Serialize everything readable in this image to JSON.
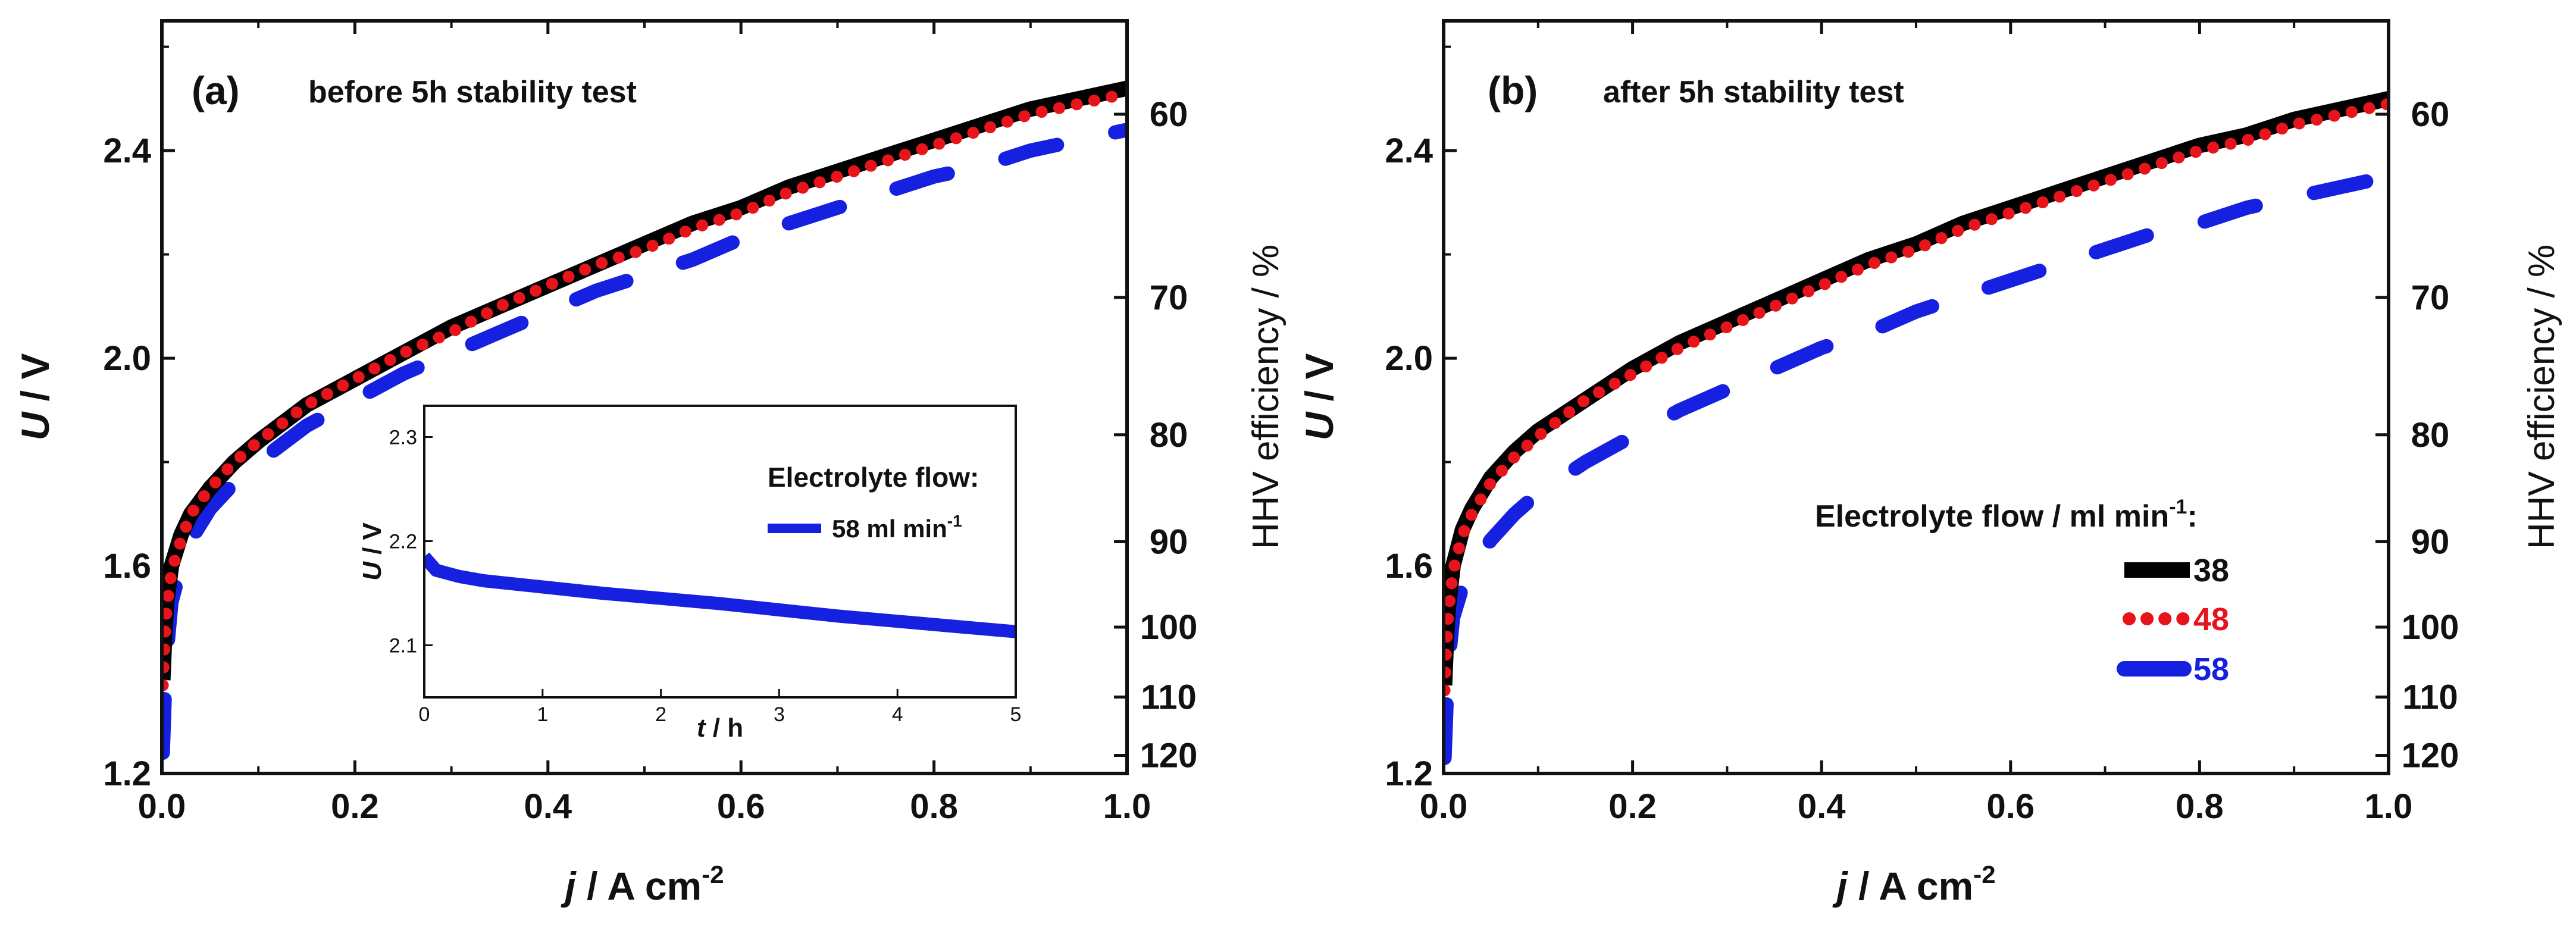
{
  "chart_data": [
    {
      "type": "line",
      "panel": "(a)",
      "caption": "before 5h stability test",
      "xlabel": "j / A cm-2",
      "xlabel_italic": "j",
      "xlabel_rest": " / A cm",
      "xlabel_sup": "-2",
      "ylabel": "U / V",
      "ylabel_italic": "U",
      "ylabel_rest": " / V",
      "y2label": "HHV efficiency / %",
      "xlim": [
        0.0,
        1.0
      ],
      "ylim": [
        1.2,
        2.65
      ],
      "xticks": [
        "0.0",
        "0.2",
        "0.4",
        "0.6",
        "0.8",
        "1.0"
      ],
      "yticks": [
        "1.2",
        "1.6",
        "2.0",
        "2.4"
      ],
      "y2ticks": [
        "60",
        "70",
        "80",
        "90",
        "100",
        "110",
        "120"
      ],
      "series": [
        {
          "name": "38",
          "color": "#000000",
          "style": "solid",
          "x": [
            0.001,
            0.003,
            0.005,
            0.01,
            0.02,
            0.03,
            0.05,
            0.075,
            0.1,
            0.15,
            0.2,
            0.25,
            0.3,
            0.35,
            0.4,
            0.45,
            0.5,
            0.55,
            0.6,
            0.65,
            0.7,
            0.75,
            0.8,
            0.85,
            0.9,
            0.95,
            1.0
          ],
          "y": [
            1.38,
            1.47,
            1.53,
            1.6,
            1.66,
            1.7,
            1.75,
            1.8,
            1.84,
            1.91,
            1.96,
            2.01,
            2.06,
            2.1,
            2.14,
            2.18,
            2.22,
            2.26,
            2.29,
            2.33,
            2.36,
            2.39,
            2.42,
            2.45,
            2.48,
            2.5,
            2.52
          ]
        },
        {
          "name": "48",
          "color": "#e8141b",
          "style": "dotted",
          "x": [
            0.001,
            0.003,
            0.005,
            0.01,
            0.02,
            0.03,
            0.05,
            0.075,
            0.1,
            0.15,
            0.2,
            0.25,
            0.3,
            0.35,
            0.4,
            0.45,
            0.5,
            0.55,
            0.6,
            0.65,
            0.7,
            0.75,
            0.8,
            0.85,
            0.9,
            0.95,
            1.0
          ],
          "y": [
            1.37,
            1.46,
            1.52,
            1.59,
            1.65,
            1.7,
            1.75,
            1.8,
            1.84,
            1.91,
            1.96,
            2.01,
            2.05,
            2.1,
            2.14,
            2.18,
            2.21,
            2.25,
            2.28,
            2.32,
            2.35,
            2.38,
            2.41,
            2.44,
            2.47,
            2.49,
            2.51
          ]
        },
        {
          "name": "58",
          "color": "#1520e0",
          "style": "dashed",
          "x": [
            0.001,
            0.003,
            0.005,
            0.01,
            0.02,
            0.03,
            0.05,
            0.075,
            0.1,
            0.15,
            0.2,
            0.25,
            0.3,
            0.35,
            0.4,
            0.45,
            0.5,
            0.55,
            0.6,
            0.65,
            0.7,
            0.75,
            0.8,
            0.85,
            0.9,
            0.95,
            1.0
          ],
          "y": [
            1.24,
            1.35,
            1.43,
            1.53,
            1.6,
            1.65,
            1.71,
            1.76,
            1.8,
            1.87,
            1.92,
            1.97,
            2.01,
            2.05,
            2.09,
            2.13,
            2.16,
            2.19,
            2.23,
            2.26,
            2.29,
            2.32,
            2.35,
            2.37,
            2.4,
            2.42,
            2.44
          ]
        }
      ],
      "inset": {
        "type": "line",
        "xlabel": "t / h",
        "xlabel_italic": "t",
        "xlabel_rest": " / h",
        "ylabel": "U / V",
        "ylabel_italic": "U",
        "ylabel_rest": " / V",
        "xlim": [
          0,
          5
        ],
        "ylim": [
          2.05,
          2.33
        ],
        "xticks": [
          "0",
          "1",
          "2",
          "3",
          "4",
          "5"
        ],
        "yticks": [
          "2.1",
          "2.2",
          "2.3"
        ],
        "legend_title": "Electrolyte flow:",
        "legend_entry": "58 ml min",
        "legend_entry_sup": "-1",
        "series": [
          {
            "name": "58 ml min-1",
            "color": "#1520e0",
            "x": [
              0.0,
              0.1,
              0.3,
              0.5,
              1.0,
              1.5,
              2.0,
              2.5,
              3.0,
              3.5,
              4.0,
              4.5,
              5.0
            ],
            "y": [
              2.185,
              2.172,
              2.166,
              2.162,
              2.156,
              2.15,
              2.145,
              2.14,
              2.134,
              2.128,
              2.123,
              2.118,
              2.113
            ]
          }
        ]
      }
    },
    {
      "type": "line",
      "panel": "(b)",
      "caption": "after 5h stability test",
      "xlabel": "j / A cm-2",
      "xlabel_italic": "j",
      "xlabel_rest": " / A cm",
      "xlabel_sup": "-2",
      "ylabel": "U / V",
      "ylabel_italic": "U",
      "ylabel_rest": " / V",
      "y2label": "HHV efficiency / %",
      "xlim": [
        0.0,
        1.0
      ],
      "ylim": [
        1.2,
        2.65
      ],
      "xticks": [
        "0.0",
        "0.2",
        "0.4",
        "0.6",
        "0.8",
        "1.0"
      ],
      "yticks": [
        "1.2",
        "1.6",
        "2.0",
        "2.4"
      ],
      "y2ticks": [
        "60",
        "70",
        "80",
        "90",
        "100",
        "110",
        "120"
      ],
      "legend_title": "Electrolyte flow / ml min",
      "legend_title_sup": "-1",
      "legend_title_end": ":",
      "series": [
        {
          "name": "38",
          "color": "#000000",
          "style": "solid",
          "x": [
            0.001,
            0.003,
            0.005,
            0.01,
            0.02,
            0.03,
            0.05,
            0.075,
            0.1,
            0.15,
            0.2,
            0.25,
            0.3,
            0.35,
            0.4,
            0.45,
            0.5,
            0.55,
            0.6,
            0.65,
            0.7,
            0.75,
            0.8,
            0.85,
            0.9,
            0.95,
            1.0
          ],
          "y": [
            1.37,
            1.46,
            1.52,
            1.6,
            1.67,
            1.71,
            1.77,
            1.82,
            1.86,
            1.92,
            1.98,
            2.03,
            2.07,
            2.11,
            2.15,
            2.19,
            2.22,
            2.26,
            2.29,
            2.32,
            2.35,
            2.38,
            2.41,
            2.43,
            2.46,
            2.48,
            2.5
          ]
        },
        {
          "name": "48",
          "color": "#e8141b",
          "style": "dotted",
          "x": [
            0.001,
            0.003,
            0.005,
            0.01,
            0.02,
            0.03,
            0.05,
            0.075,
            0.1,
            0.15,
            0.2,
            0.25,
            0.3,
            0.35,
            0.4,
            0.45,
            0.5,
            0.55,
            0.6,
            0.65,
            0.7,
            0.75,
            0.8,
            0.85,
            0.9,
            0.95,
            1.0
          ],
          "y": [
            1.36,
            1.45,
            1.51,
            1.59,
            1.66,
            1.7,
            1.76,
            1.81,
            1.85,
            1.92,
            1.97,
            2.02,
            2.06,
            2.1,
            2.14,
            2.18,
            2.21,
            2.25,
            2.28,
            2.31,
            2.34,
            2.37,
            2.4,
            2.42,
            2.45,
            2.47,
            2.49
          ]
        },
        {
          "name": "58",
          "color": "#1520e0",
          "style": "dashed",
          "x": [
            0.001,
            0.003,
            0.005,
            0.01,
            0.02,
            0.03,
            0.05,
            0.075,
            0.1,
            0.15,
            0.2,
            0.25,
            0.3,
            0.35,
            0.4,
            0.45,
            0.5,
            0.55,
            0.6,
            0.65,
            0.7,
            0.75,
            0.8,
            0.85,
            0.9,
            0.95,
            1.0
          ],
          "y": [
            1.23,
            1.33,
            1.41,
            1.5,
            1.56,
            1.6,
            1.65,
            1.7,
            1.74,
            1.8,
            1.85,
            1.9,
            1.94,
            1.98,
            2.02,
            2.05,
            2.09,
            2.12,
            2.15,
            2.18,
            2.21,
            2.24,
            2.26,
            2.29,
            2.31,
            2.33,
            2.35
          ]
        }
      ]
    }
  ]
}
